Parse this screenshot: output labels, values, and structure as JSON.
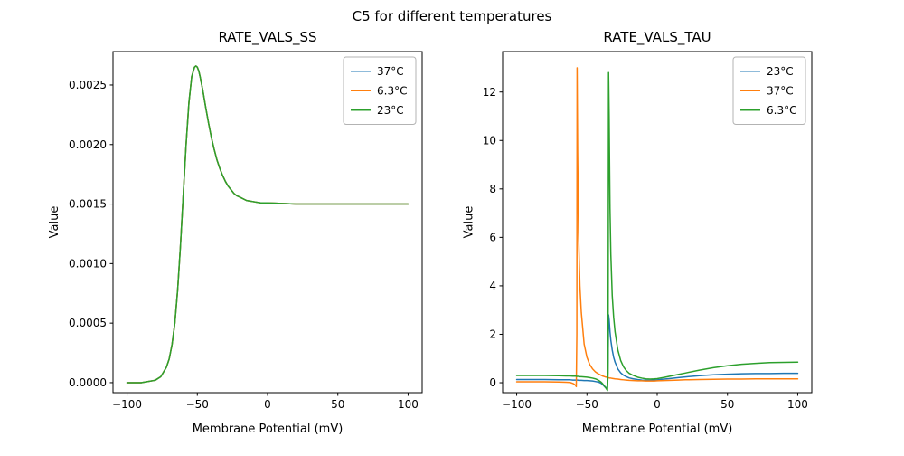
{
  "figure": {
    "suptitle": "C5 for different temperatures"
  },
  "chart_data": [
    {
      "type": "line",
      "title": "RATE_VALS_SS",
      "xlabel": "Membrane Potential (mV)",
      "ylabel": "Value",
      "xlim": [
        -110,
        110
      ],
      "ylim": [
        -8.4e-05,
        0.002781
      ],
      "xticks": [
        -100,
        -50,
        0,
        50,
        100
      ],
      "xtick_labels": [
        "−100",
        "−50",
        "0",
        "50",
        "100"
      ],
      "yticks": [
        0,
        0.0005,
        0.001,
        0.0015,
        0.002,
        0.0025
      ],
      "ytick_labels": [
        "0.0000",
        "0.0005",
        "0.0010",
        "0.0015",
        "0.0020",
        "0.0025"
      ],
      "legend_position": "upper right",
      "x": [
        -100,
        -90,
        -80,
        -76,
        -72,
        -70,
        -68,
        -66,
        -64,
        -62,
        -60,
        -58,
        -56,
        -54,
        -52,
        -51,
        -50,
        -49,
        -48,
        -46,
        -44,
        -42,
        -40,
        -38,
        -36,
        -34,
        -32,
        -30,
        -28,
        -26,
        -24,
        -22,
        -20,
        -15,
        -10,
        -5,
        0,
        20,
        50,
        100
      ],
      "series": [
        {
          "name": "37°C",
          "color": "#1f77b4",
          "values": [
            0,
            0,
            2e-05,
            5e-05,
            0.00013,
            0.0002,
            0.00032,
            0.0005,
            0.00078,
            0.00115,
            0.00158,
            0.002,
            0.00235,
            0.00257,
            0.00265,
            0.00266,
            0.00265,
            0.00262,
            0.00257,
            0.00245,
            0.00231,
            0.00218,
            0.00206,
            0.00196,
            0.00187,
            0.0018,
            0.00174,
            0.00169,
            0.00165,
            0.00162,
            0.00159,
            0.00157,
            0.00156,
            0.00153,
            0.00152,
            0.00151,
            0.00151,
            0.0015,
            0.0015,
            0.0015
          ]
        },
        {
          "name": "6.3°C",
          "color": "#ff7f0e",
          "values": [
            0,
            0,
            2e-05,
            5e-05,
            0.00013,
            0.0002,
            0.00032,
            0.0005,
            0.00078,
            0.00115,
            0.00158,
            0.002,
            0.00235,
            0.00257,
            0.00265,
            0.00266,
            0.00265,
            0.00262,
            0.00257,
            0.00245,
            0.00231,
            0.00218,
            0.00206,
            0.00196,
            0.00187,
            0.0018,
            0.00174,
            0.00169,
            0.00165,
            0.00162,
            0.00159,
            0.00157,
            0.00156,
            0.00153,
            0.00152,
            0.00151,
            0.00151,
            0.0015,
            0.0015,
            0.0015
          ]
        },
        {
          "name": "23°C",
          "color": "#2ca02c",
          "values": [
            0,
            0,
            2e-05,
            5e-05,
            0.00013,
            0.0002,
            0.00032,
            0.0005,
            0.00078,
            0.00115,
            0.00158,
            0.002,
            0.00235,
            0.00257,
            0.00265,
            0.00266,
            0.00265,
            0.00262,
            0.00257,
            0.00245,
            0.00231,
            0.00218,
            0.00206,
            0.00196,
            0.00187,
            0.0018,
            0.00174,
            0.00169,
            0.00165,
            0.00162,
            0.00159,
            0.00157,
            0.00156,
            0.00153,
            0.00152,
            0.00151,
            0.00151,
            0.0015,
            0.0015,
            0.0015
          ]
        }
      ]
    },
    {
      "type": "line",
      "title": "RATE_VALS_TAU",
      "xlabel": "Membrane Potential (mV)",
      "ylabel": "Value",
      "xlim": [
        -110,
        110
      ],
      "ylim": [
        -0.41,
        13.67
      ],
      "xticks": [
        -100,
        -50,
        0,
        50,
        100
      ],
      "xtick_labels": [
        "−100",
        "−50",
        "0",
        "50",
        "100"
      ],
      "yticks": [
        0,
        2,
        4,
        6,
        8,
        10,
        12
      ],
      "ytick_labels": [
        "0",
        "2",
        "4",
        "6",
        "8",
        "10",
        "12"
      ],
      "legend_position": "upper right",
      "x": [
        -100,
        -90,
        -80,
        -70,
        -65,
        -62,
        -60,
        -59,
        -58,
        -57.6,
        -57.2,
        -57,
        -56.6,
        -56,
        -55,
        -54,
        -52,
        -50,
        -48,
        -46,
        -44,
        -42,
        -40,
        -39,
        -38,
        -37,
        -36,
        -35.4,
        -35,
        -34.6,
        -34.2,
        -33.6,
        -33,
        -32,
        -31,
        -30,
        -28,
        -26,
        -24,
        -22,
        -20,
        -17,
        -14,
        -11,
        -8,
        -5,
        -2,
        0,
        5,
        10,
        15,
        20,
        30,
        40,
        50,
        60,
        70,
        80,
        90,
        100
      ],
      "series": [
        {
          "name": "23°C",
          "color": "#1f77b4",
          "values": [
            0.13,
            0.13,
            0.13,
            0.12,
            0.12,
            0.12,
            0.11,
            0.11,
            0.11,
            0.11,
            0.11,
            0.11,
            0.11,
            0.1,
            0.1,
            0.1,
            0.09,
            0.09,
            0.08,
            0.07,
            0.05,
            0.03,
            -0.02,
            -0.07,
            -0.13,
            -0.19,
            -0.22,
            -0.1,
            0.9,
            2.8,
            2.6,
            2.1,
            1.75,
            1.35,
            1.05,
            0.85,
            0.57,
            0.41,
            0.31,
            0.25,
            0.2,
            0.16,
            0.13,
            0.11,
            0.1,
            0.1,
            0.11,
            0.12,
            0.15,
            0.18,
            0.21,
            0.24,
            0.29,
            0.33,
            0.35,
            0.37,
            0.38,
            0.38,
            0.39,
            0.39
          ]
        },
        {
          "name": "37°C",
          "color": "#ff7f0e",
          "values": [
            0.04,
            0.04,
            0.04,
            0.03,
            0.02,
            0.01,
            -0.03,
            -0.06,
            -0.12,
            -0.16,
            2.0,
            13.0,
            9.5,
            6.2,
            4.0,
            2.9,
            1.6,
            1.05,
            0.75,
            0.57,
            0.45,
            0.37,
            0.31,
            0.28,
            0.26,
            0.24,
            0.23,
            0.22,
            0.21,
            0.2,
            0.2,
            0.19,
            0.19,
            0.18,
            0.17,
            0.16,
            0.15,
            0.13,
            0.12,
            0.11,
            0.1,
            0.09,
            0.08,
            0.08,
            0.07,
            0.07,
            0.07,
            0.08,
            0.09,
            0.1,
            0.11,
            0.12,
            0.13,
            0.14,
            0.15,
            0.15,
            0.16,
            0.16,
            0.16,
            0.16
          ]
        },
        {
          "name": "6.3°C",
          "color": "#2ca02c",
          "values": [
            0.3,
            0.3,
            0.3,
            0.29,
            0.28,
            0.28,
            0.27,
            0.27,
            0.27,
            0.27,
            0.26,
            0.26,
            0.26,
            0.26,
            0.25,
            0.25,
            0.24,
            0.23,
            0.21,
            0.19,
            0.16,
            0.11,
            0.03,
            -0.03,
            -0.1,
            -0.18,
            -0.27,
            -0.32,
            0.4,
            12.8,
            11.0,
            7.2,
            5.3,
            3.6,
            2.7,
            2.1,
            1.35,
            0.92,
            0.66,
            0.5,
            0.39,
            0.3,
            0.23,
            0.19,
            0.16,
            0.15,
            0.16,
            0.17,
            0.22,
            0.28,
            0.34,
            0.4,
            0.52,
            0.62,
            0.7,
            0.76,
            0.8,
            0.83,
            0.84,
            0.85
          ]
        }
      ]
    }
  ]
}
